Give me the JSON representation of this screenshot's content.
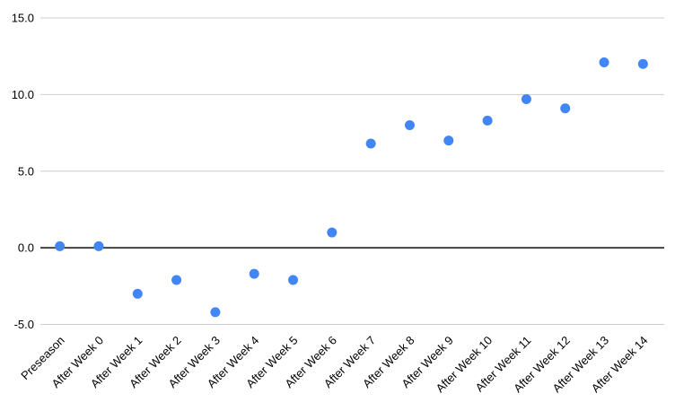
{
  "chart_data": {
    "type": "scatter",
    "title": "",
    "xlabel": "",
    "ylabel": "",
    "categories": [
      "Preseason",
      "After Week 0",
      "After Week 1",
      "After Week 2",
      "After Week 3",
      "After Week 4",
      "After Week 5",
      "After Week 6",
      "After Week 7",
      "After Week 8",
      "After Week 9",
      "After Week 10",
      "After Week 11",
      "After Week 12",
      "After Week 13",
      "After Week 14"
    ],
    "values": [
      0.1,
      0.1,
      -3.0,
      -2.1,
      -4.2,
      -1.7,
      -2.1,
      1.0,
      6.8,
      8.0,
      7.0,
      8.3,
      9.7,
      9.1,
      12.1,
      12.0
    ],
    "ylim": [
      -5,
      15
    ],
    "yticks": [
      15,
      10,
      5,
      0,
      -5
    ],
    "ytick_labels": [
      "15.0",
      "10.0",
      "5.0",
      "0.0",
      "-5.0"
    ],
    "grid": true,
    "legend": "none",
    "x_label_rotation_deg": -45,
    "colors": {
      "point": "#4285f4",
      "gridline": "#cccccc",
      "zero_line": "#424242",
      "text": "#000000",
      "background": "#ffffff"
    }
  }
}
